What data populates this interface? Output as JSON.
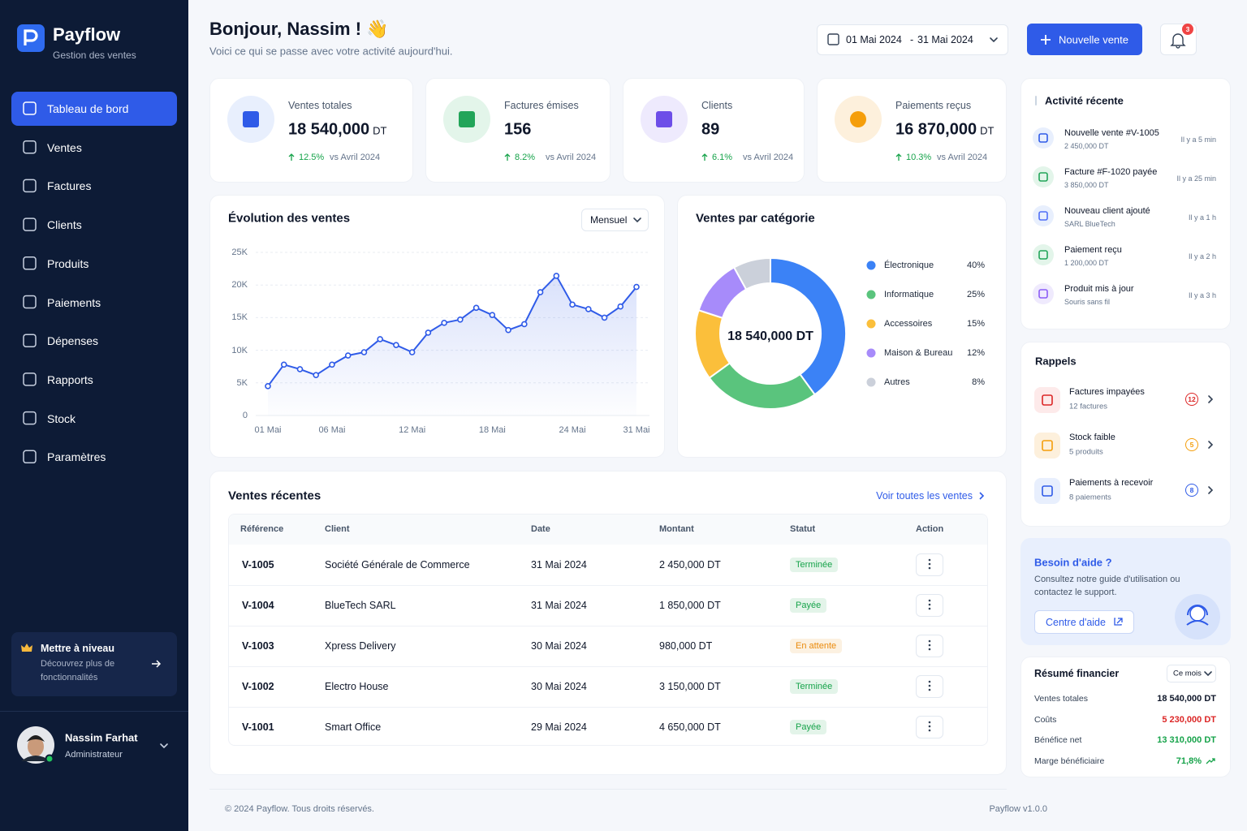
{
  "brand": {
    "name": "Payflow",
    "tagline": "Gestion des ventes"
  },
  "nav": [
    "Tableau de bord",
    "Ventes",
    "Factures",
    "Clients",
    "Produits",
    "Paiements",
    "Dépenses",
    "Rapports",
    "Stock",
    "Paramètres"
  ],
  "upgrade": {
    "title": "Mettre à niveau",
    "text": "Découvrez plus de fonctionnalités"
  },
  "user": {
    "name": "Nassim Farhat",
    "role": "Administrateur"
  },
  "header": {
    "greeting": "Bonjour, Nassim ! 👋",
    "subtitle": "Voici ce qui se passe avec votre activité aujourd'hui.",
    "date_from": "01 Mai 2024",
    "date_sep": "-",
    "date_to": "31 Mai 2024",
    "new_button": "Nouvelle vente",
    "notifications": 3
  },
  "kpis": [
    {
      "label": "Ventes totales",
      "value": "18 540,000",
      "unit": "DT",
      "change": "12.5%",
      "compare": "vs Avril 2024",
      "color": "#2f5be8",
      "bg": "#e8effd"
    },
    {
      "label": "Factures émises",
      "value": "156",
      "change": "8.2%",
      "compare": "vs Avril 2024",
      "color": "#22a559",
      "bg": "#e3f5ea"
    },
    {
      "label": "Clients",
      "value": "89",
      "change": "6.1%",
      "compare": "vs Avril 2024",
      "color": "#6d4ee8",
      "bg": "#eeeafd"
    },
    {
      "label": "Paiements reçus",
      "value": "16 870,000",
      "unit": "DT",
      "change": "10.3%",
      "compare": "vs Avril 2024",
      "color": "#f59e0b",
      "bg": "#fdf0dc"
    }
  ],
  "chart_data": [
    {
      "type": "line",
      "title": "Évolution des ventes",
      "period": "Mensuel",
      "color": "#2f5be8",
      "grid": true,
      "categories": [
        "01 Mai",
        null,
        null,
        null,
        "06 Mai",
        null,
        null,
        null,
        null,
        "12 Mai",
        null,
        null,
        null,
        null,
        "18 Mai",
        null,
        null,
        null,
        null,
        "24 Mai",
        null,
        null,
        null,
        "31 Mai"
      ],
      "values": [
        4500,
        7800,
        7100,
        6200,
        7800,
        9200,
        9700,
        11700,
        10800,
        9700,
        12700,
        14200,
        14700,
        16500,
        15400,
        13100,
        14000,
        18900,
        21400,
        17000,
        16300,
        15000,
        16700,
        19700
      ],
      "ylim": [
        0,
        25000
      ],
      "yticks": [
        0,
        {
          "value": 5000,
          "label": "5K"
        },
        {
          "value": 10000,
          "label": "10K"
        },
        {
          "value": 15000,
          "label": "15K"
        },
        {
          "value": 20000,
          "label": "20K"
        },
        {
          "value": 25000,
          "label": "25K"
        }
      ]
    },
    {
      "type": "pie",
      "donut": true,
      "title": "Ventes par catégorie",
      "center_label": "18 540,000 DT",
      "categories": [
        "Électronique",
        "Informatique",
        "Accessoires",
        "Maison & Bureau",
        "Autres"
      ],
      "values": [
        40,
        25,
        15,
        12,
        8
      ],
      "value_labels": [
        "40%",
        "25%",
        "15%",
        "12%",
        "8%"
      ],
      "colors": [
        "#3b82f6",
        "#5ac47d",
        "#fbbf3b",
        "#a78bfa",
        "#cbd0da"
      ]
    }
  ],
  "sales": {
    "title": "Ventes récentes",
    "link": "Voir toutes les ventes",
    "columns": [
      "Référence",
      "Client",
      "Date",
      "Montant",
      "Statut",
      "Action"
    ],
    "rows": [
      {
        "ref": "V-1005",
        "client": "Société Générale de Commerce",
        "date": "31 Mai 2024",
        "amount": "2 450,000 DT",
        "status": "Terminée",
        "status_color": "#16a34a"
      },
      {
        "ref": "V-1004",
        "client": "BlueTech SARL",
        "date": "31 Mai 2024",
        "amount": "1 850,000 DT",
        "status": "Payée",
        "status_color": "#16a34a"
      },
      {
        "ref": "V-1003",
        "client": "Xpress Delivery",
        "date": "30 Mai 2024",
        "amount": "980,000 DT",
        "status": "En attente",
        "status_color": "#ea8a0c"
      },
      {
        "ref": "V-1002",
        "client": "Electro House",
        "date": "30 Mai 2024",
        "amount": "3 150,000 DT",
        "status": "Terminée",
        "status_color": "#16a34a"
      },
      {
        "ref": "V-1001",
        "client": "Smart Office",
        "date": "29 Mai 2024",
        "amount": "4 650,000 DT",
        "status": "Payée",
        "status_color": "#16a34a"
      }
    ]
  },
  "activity": {
    "title": "Activité récente",
    "items": [
      {
        "title": "Nouvelle vente #V-1005",
        "detail": "2 450,000 DT",
        "time": "Il y a 5 min",
        "color": "#2f5be8",
        "bg": "#e8effd"
      },
      {
        "title": "Facture #F-1020 payée",
        "detail": "3 850,000 DT",
        "time": "Il y a 25 min",
        "color": "#22a559",
        "bg": "#e3f5ea"
      },
      {
        "title": "Nouveau client ajouté",
        "detail": "SARL BlueTech",
        "time": "Il y a 1 h",
        "color": "#4f6ef7",
        "bg": "#e8effd"
      },
      {
        "title": "Paiement reçu",
        "detail": "1 200,000 DT",
        "time": "Il y a 2 h",
        "color": "#22a559",
        "bg": "#e3f5ea"
      },
      {
        "title": "Produit mis à jour",
        "detail": "Souris sans fil",
        "time": "Il y a 3 h",
        "color": "#8b5cf6",
        "bg": "#efeafd"
      }
    ]
  },
  "reminders": {
    "title": "Rappels",
    "items": [
      {
        "title": "Factures impayées",
        "detail": "12 factures",
        "count": 12,
        "color": "#dc2626",
        "bg": "#fdeaea"
      },
      {
        "title": "Stock faible",
        "detail": "5 produits",
        "count": 5,
        "color": "#f59e0b",
        "bg": "#fdf0dc"
      },
      {
        "title": "Paiements à recevoir",
        "detail": "8 paiements",
        "count": 8,
        "color": "#2f5be8",
        "bg": "#e8effd"
      }
    ]
  },
  "help": {
    "title": "Besoin d'aide ?",
    "text": "Consultez notre guide d'utilisation ou contactez le support.",
    "button": "Centre d'aide"
  },
  "finance": {
    "title": "Résumé financier",
    "period": "Ce mois",
    "rows": [
      {
        "label": "Ventes totales",
        "value": "18 540,000 DT",
        "color": "#0f172a"
      },
      {
        "label": "Coûts",
        "value": "5 230,000 DT",
        "color": "#dc2626"
      },
      {
        "label": "Bénéfice net",
        "value": "13 310,000 DT",
        "color": "#16a34a"
      },
      {
        "label": "Marge bénéficiaire",
        "value": "71,8%",
        "color": "#16a34a"
      }
    ]
  },
  "footer": {
    "copyright": "© 2024 Payflow. Tous droits réservés.",
    "version": "Payflow v1.0.0"
  }
}
